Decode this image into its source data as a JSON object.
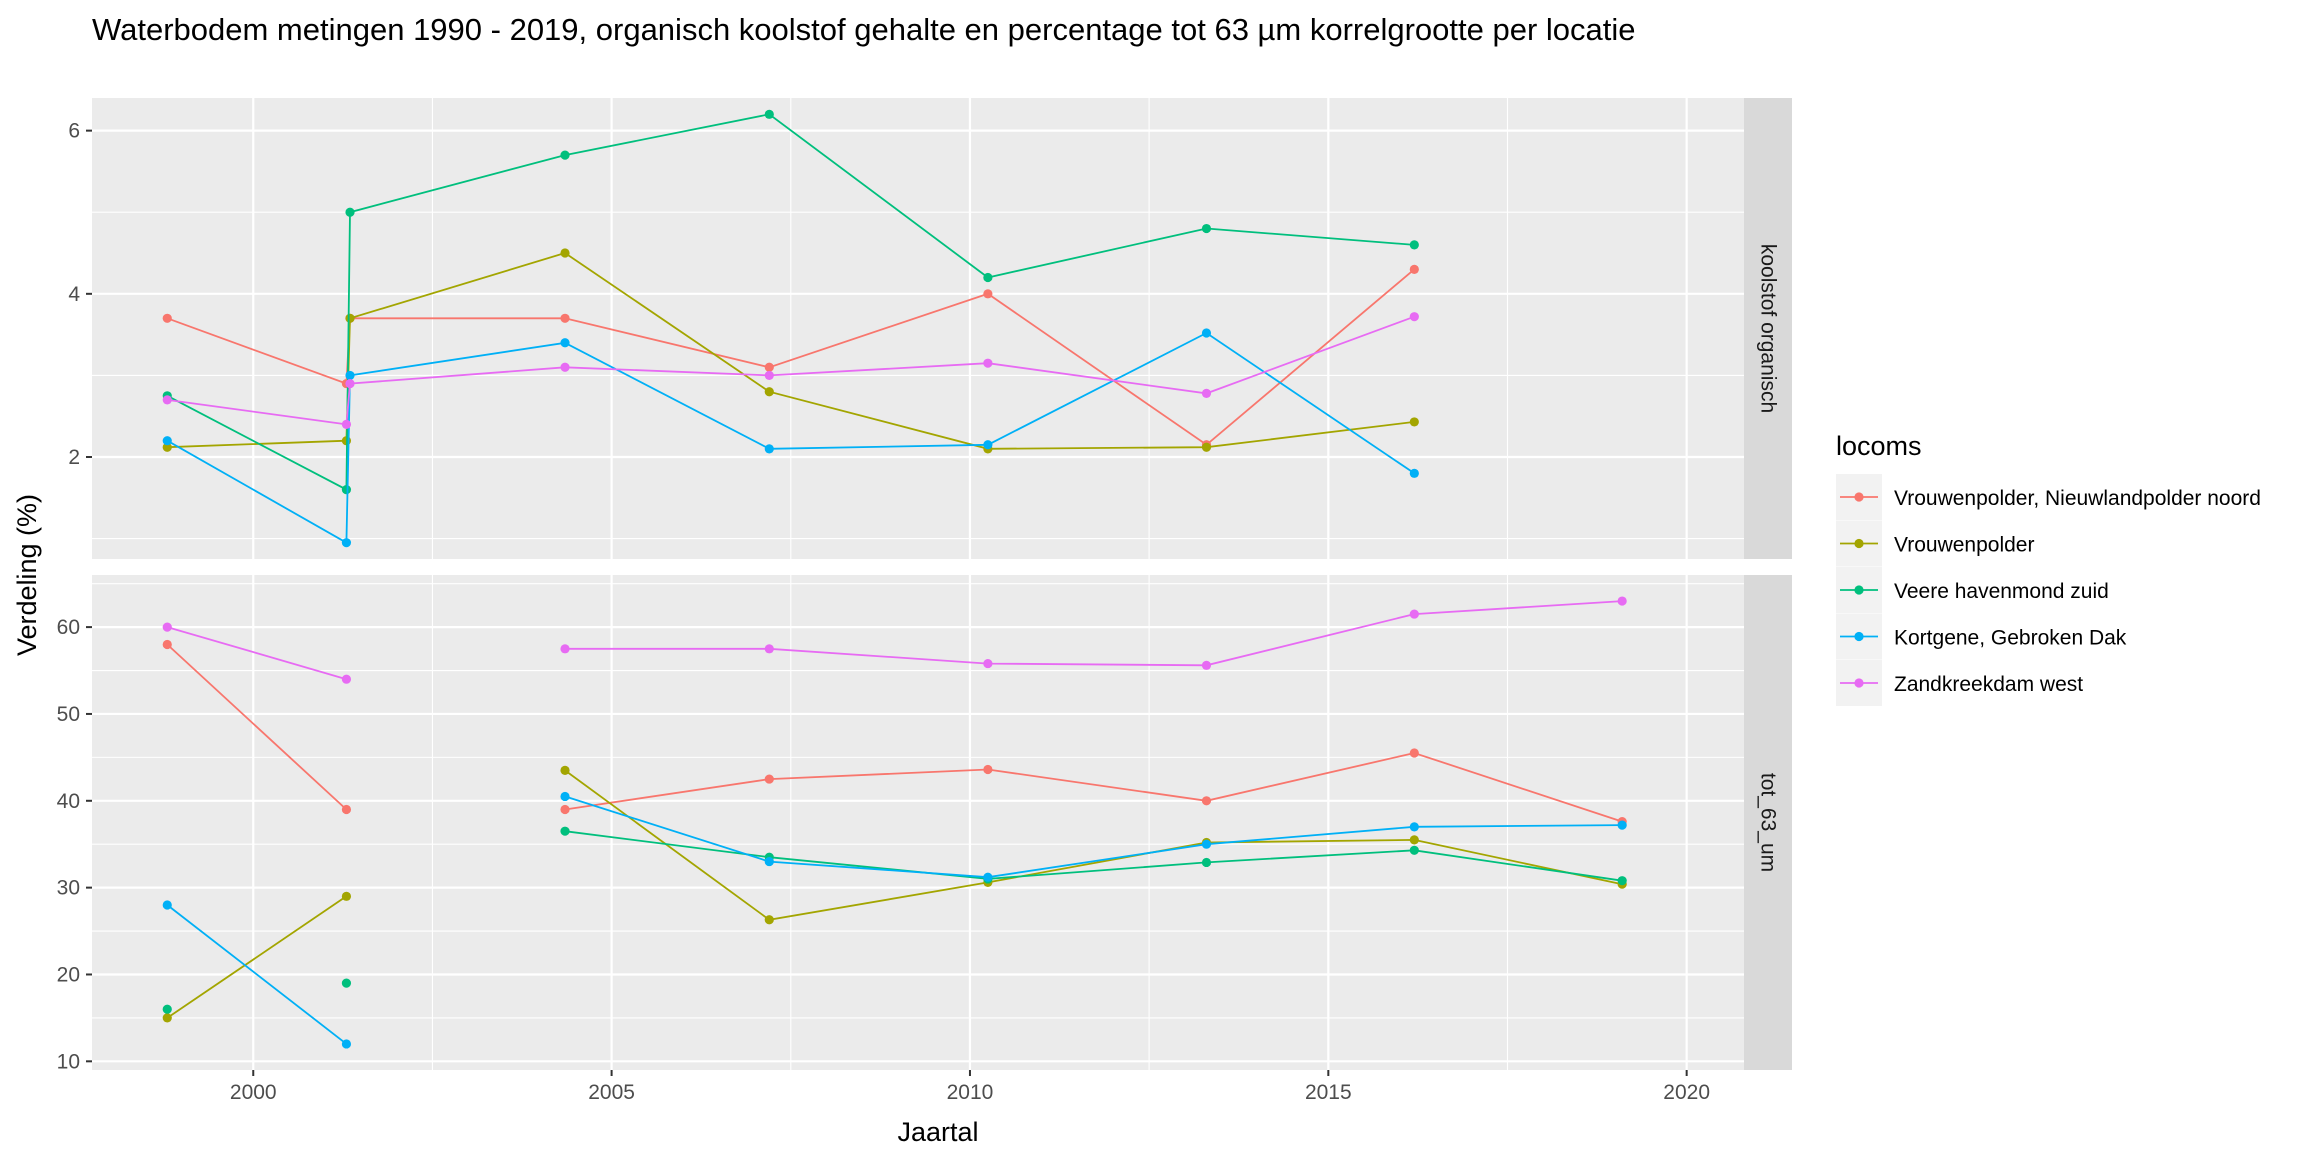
{
  "chart_data": {
    "type": "line",
    "title": "Waterbodem metingen 1990 - 2019, organisch koolstof gehalte en percentage tot 63 µm korrelgrootte per locatie",
    "xlabel": "Jaartal",
    "ylabel": "Verdeling (%)",
    "x_ticks": [
      2000,
      2005,
      2010,
      2015,
      2020
    ],
    "xlim": [
      1997.75,
      2020.8
    ],
    "legend": {
      "title": "locoms",
      "placement": "right"
    },
    "series": [
      {
        "name": "Vrouwenpolder, Nieuwlandpolder noord",
        "color": "#F8766D"
      },
      {
        "name": "Vrouwenpolder",
        "color": "#A3A500"
      },
      {
        "name": "Veere havenmond zuid",
        "color": "#00BF7D"
      },
      {
        "name": "Kortgene, Gebroken Dak",
        "color": "#00B0F6"
      },
      {
        "name": "Zandkreekdam west",
        "color": "#E76BF3"
      }
    ],
    "panels": [
      {
        "label": "koolstof organisch",
        "ylim": [
          0.75,
          6.4
        ],
        "y_ticks": [
          2,
          4,
          6
        ],
        "data": [
          [
            [
              1998.8,
              3.7
            ],
            [
              2001.3,
              2.9
            ],
            [
              2001.35,
              3.7
            ],
            [
              2004.35,
              3.7
            ],
            [
              2007.2,
              3.1
            ],
            [
              2010.25,
              4.0
            ],
            [
              2013.3,
              2.15
            ],
            [
              2016.2,
              4.3
            ]
          ],
          [
            [
              1998.8,
              2.12
            ],
            [
              2001.3,
              2.2
            ],
            [
              2001.35,
              3.7
            ],
            [
              2004.35,
              4.5
            ],
            [
              2007.2,
              2.8
            ],
            [
              2010.25,
              2.1
            ],
            [
              2013.3,
              2.12
            ],
            [
              2016.2,
              2.43
            ]
          ],
          [
            [
              1998.8,
              2.75
            ],
            [
              2001.3,
              1.6
            ],
            [
              2001.35,
              5.0
            ],
            [
              2004.35,
              5.7
            ],
            [
              2007.2,
              6.2
            ],
            [
              2010.25,
              4.2
            ],
            [
              2013.3,
              4.8
            ],
            [
              2016.2,
              4.6
            ]
          ],
          [
            [
              1998.8,
              2.2
            ],
            [
              2001.3,
              0.95
            ],
            [
              2001.35,
              3.0
            ],
            [
              2004.35,
              3.4
            ],
            [
              2007.2,
              2.1
            ],
            [
              2010.25,
              2.15
            ],
            [
              2013.3,
              3.52
            ],
            [
              2016.2,
              1.8
            ]
          ],
          [
            [
              1998.8,
              2.7
            ],
            [
              2001.3,
              2.4
            ],
            [
              2001.35,
              2.9
            ],
            [
              2004.35,
              3.1
            ],
            [
              2007.2,
              3.0
            ],
            [
              2010.25,
              3.15
            ],
            [
              2013.3,
              2.78
            ],
            [
              2016.2,
              3.72
            ]
          ]
        ]
      },
      {
        "label": "tot_63_um",
        "ylim": [
          9.0,
          66.0
        ],
        "y_ticks": [
          10,
          20,
          30,
          40,
          50,
          60
        ],
        "data": [
          [
            [
              1998.8,
              58.0
            ],
            [
              2001.3,
              39.0
            ],
            null,
            [
              2004.35,
              39.0
            ],
            [
              2007.2,
              42.5
            ],
            [
              2010.25,
              43.6
            ],
            [
              2013.3,
              40.0
            ],
            [
              2016.2,
              45.5
            ],
            [
              2019.1,
              37.6
            ]
          ],
          [
            [
              1998.8,
              15.0
            ],
            [
              2001.3,
              29.0
            ],
            null,
            [
              2004.35,
              43.5
            ],
            [
              2007.2,
              26.3
            ],
            [
              2010.25,
              30.6
            ],
            [
              2013.3,
              35.2
            ],
            [
              2016.2,
              35.5
            ],
            [
              2019.1,
              30.4
            ]
          ],
          [
            [
              1998.8,
              16.0
            ],
            null,
            [
              2001.3,
              19.0
            ],
            null,
            [
              2004.35,
              36.5
            ],
            [
              2007.2,
              33.5
            ],
            [
              2010.25,
              31.0
            ],
            [
              2013.3,
              32.9
            ],
            [
              2016.2,
              34.3
            ],
            [
              2019.1,
              30.8
            ]
          ],
          [
            [
              1998.8,
              28.0
            ],
            [
              2001.3,
              12.0
            ],
            null,
            [
              2004.35,
              40.5
            ],
            [
              2007.2,
              33.0
            ],
            [
              2010.25,
              31.2
            ],
            [
              2013.3,
              35.0
            ],
            [
              2016.2,
              37.0
            ],
            [
              2019.1,
              37.2
            ]
          ],
          [
            [
              1998.8,
              60.0
            ],
            [
              2001.3,
              54.0
            ],
            null,
            [
              2004.35,
              57.5
            ],
            [
              2007.2,
              57.5
            ],
            [
              2010.25,
              55.8
            ],
            [
              2013.3,
              55.6
            ],
            [
              2016.2,
              61.5
            ],
            [
              2019.1,
              63.0
            ]
          ]
        ]
      }
    ]
  }
}
